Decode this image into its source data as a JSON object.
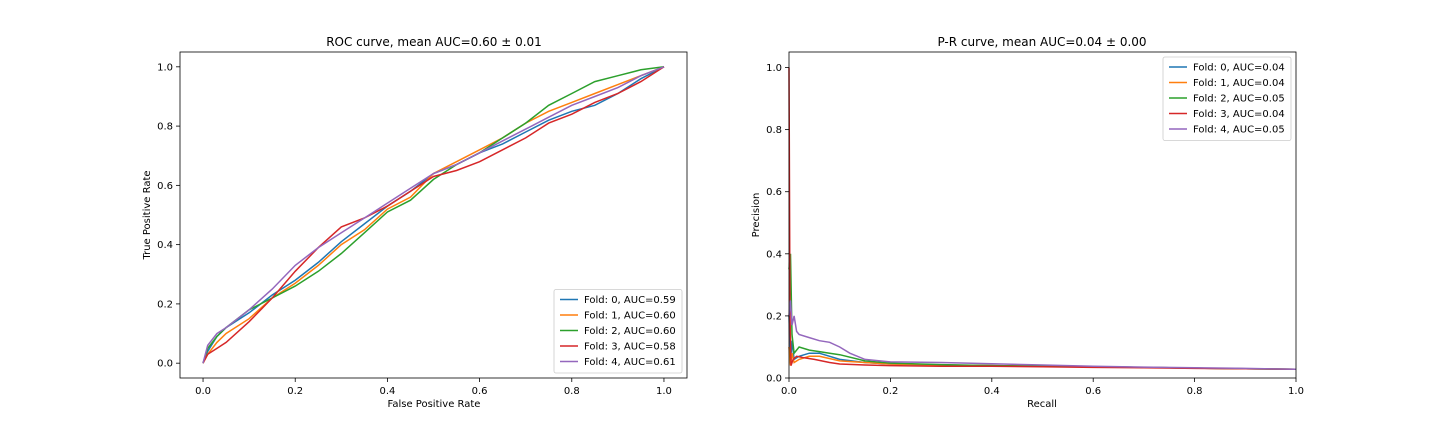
{
  "colors": {
    "fold0": "#1f77b4",
    "fold1": "#ff7f0e",
    "fold2": "#2ca02c",
    "fold3": "#d62728",
    "fold4": "#9467bd"
  },
  "chart_data": [
    {
      "type": "line",
      "title": "ROC curve, mean AUC=0.60 ± 0.01",
      "xlabel": "False Positive Rate",
      "ylabel": "True Positive Rate",
      "xlim": [
        -0.05,
        1.05
      ],
      "ylim": [
        -0.05,
        1.05
      ],
      "xticks": [
        "0.0",
        "0.2",
        "0.4",
        "0.6",
        "0.8",
        "1.0"
      ],
      "yticks": [
        "0.0",
        "0.2",
        "0.4",
        "0.6",
        "0.8",
        "1.0"
      ],
      "grid": false,
      "legend_position": "lower right",
      "series": [
        {
          "name": "Fold: 0, AUC=0.59",
          "color": "#1f77b4",
          "x": [
            0,
            0.01,
            0.03,
            0.05,
            0.1,
            0.15,
            0.2,
            0.25,
            0.3,
            0.35,
            0.4,
            0.45,
            0.5,
            0.55,
            0.6,
            0.65,
            0.7,
            0.75,
            0.8,
            0.85,
            0.9,
            0.95,
            1.0
          ],
          "y": [
            0,
            0.04,
            0.09,
            0.12,
            0.17,
            0.23,
            0.28,
            0.34,
            0.41,
            0.47,
            0.53,
            0.58,
            0.64,
            0.67,
            0.71,
            0.74,
            0.78,
            0.82,
            0.85,
            0.87,
            0.91,
            0.96,
            1.0
          ]
        },
        {
          "name": "Fold: 1, AUC=0.60",
          "color": "#ff7f0e",
          "x": [
            0,
            0.01,
            0.03,
            0.05,
            0.1,
            0.15,
            0.2,
            0.25,
            0.3,
            0.35,
            0.4,
            0.45,
            0.5,
            0.55,
            0.6,
            0.65,
            0.7,
            0.75,
            0.8,
            0.85,
            0.9,
            0.95,
            1.0
          ],
          "y": [
            0,
            0.03,
            0.07,
            0.1,
            0.15,
            0.22,
            0.27,
            0.33,
            0.4,
            0.45,
            0.52,
            0.56,
            0.64,
            0.68,
            0.72,
            0.76,
            0.81,
            0.85,
            0.88,
            0.91,
            0.94,
            0.97,
            1.0
          ]
        },
        {
          "name": "Fold: 2, AUC=0.60",
          "color": "#2ca02c",
          "x": [
            0,
            0.01,
            0.03,
            0.05,
            0.1,
            0.15,
            0.2,
            0.25,
            0.3,
            0.35,
            0.4,
            0.45,
            0.5,
            0.55,
            0.6,
            0.65,
            0.7,
            0.75,
            0.8,
            0.85,
            0.9,
            0.95,
            1.0
          ],
          "y": [
            0,
            0.05,
            0.09,
            0.12,
            0.18,
            0.22,
            0.26,
            0.31,
            0.37,
            0.44,
            0.51,
            0.55,
            0.62,
            0.67,
            0.71,
            0.76,
            0.81,
            0.87,
            0.91,
            0.95,
            0.97,
            0.99,
            1.0
          ]
        },
        {
          "name": "Fold: 3, AUC=0.58",
          "color": "#d62728",
          "x": [
            0,
            0.01,
            0.03,
            0.05,
            0.1,
            0.15,
            0.2,
            0.25,
            0.3,
            0.35,
            0.4,
            0.45,
            0.5,
            0.55,
            0.6,
            0.65,
            0.7,
            0.75,
            0.8,
            0.85,
            0.9,
            0.95,
            1.0
          ],
          "y": [
            0,
            0.03,
            0.05,
            0.07,
            0.14,
            0.22,
            0.31,
            0.39,
            0.46,
            0.49,
            0.53,
            0.58,
            0.63,
            0.65,
            0.68,
            0.72,
            0.76,
            0.81,
            0.84,
            0.88,
            0.91,
            0.95,
            1.0
          ]
        },
        {
          "name": "Fold: 4, AUC=0.61",
          "color": "#9467bd",
          "x": [
            0,
            0.01,
            0.03,
            0.05,
            0.1,
            0.15,
            0.2,
            0.25,
            0.3,
            0.35,
            0.4,
            0.45,
            0.5,
            0.55,
            0.6,
            0.65,
            0.7,
            0.75,
            0.8,
            0.85,
            0.9,
            0.95,
            1.0
          ],
          "y": [
            0,
            0.06,
            0.1,
            0.12,
            0.18,
            0.25,
            0.33,
            0.39,
            0.44,
            0.49,
            0.54,
            0.59,
            0.64,
            0.67,
            0.71,
            0.75,
            0.79,
            0.83,
            0.87,
            0.9,
            0.93,
            0.97,
            1.0
          ]
        }
      ]
    },
    {
      "type": "line",
      "title": "P-R curve, mean AUC=0.04 ± 0.00",
      "xlabel": "Recall",
      "ylabel": "Precision",
      "xlim": [
        0.0,
        1.0
      ],
      "ylim": [
        0.0,
        1.05
      ],
      "xticks": [
        "0.0",
        "0.2",
        "0.4",
        "0.6",
        "0.8",
        "1.0"
      ],
      "yticks": [
        "0.0",
        "0.2",
        "0.4",
        "0.6",
        "0.8",
        "1.0"
      ],
      "grid": false,
      "legend_position": "upper right",
      "series": [
        {
          "name": "Fold: 0, AUC=0.04",
          "color": "#1f77b4",
          "x": [
            0,
            0.003,
            0.006,
            0.01,
            0.02,
            0.04,
            0.06,
            0.1,
            0.15,
            0.2,
            0.3,
            0.4,
            0.5,
            0.6,
            0.7,
            0.8,
            0.9,
            1.0
          ],
          "y": [
            0.2,
            0.05,
            0.12,
            0.06,
            0.07,
            0.08,
            0.08,
            0.06,
            0.05,
            0.045,
            0.042,
            0.04,
            0.038,
            0.036,
            0.034,
            0.032,
            0.03,
            0.028
          ]
        },
        {
          "name": "Fold: 1, AUC=0.04",
          "color": "#ff7f0e",
          "x": [
            0,
            0.003,
            0.006,
            0.01,
            0.02,
            0.04,
            0.06,
            0.1,
            0.15,
            0.2,
            0.3,
            0.4,
            0.5,
            0.6,
            0.7,
            0.8,
            0.9,
            1.0
          ],
          "y": [
            0.1,
            0.04,
            0.08,
            0.05,
            0.06,
            0.07,
            0.07,
            0.055,
            0.05,
            0.045,
            0.042,
            0.04,
            0.038,
            0.036,
            0.034,
            0.032,
            0.03,
            0.028
          ]
        },
        {
          "name": "Fold: 2, AUC=0.05",
          "color": "#2ca02c",
          "x": [
            0,
            0.003,
            0.006,
            0.01,
            0.02,
            0.04,
            0.06,
            0.08,
            0.1,
            0.15,
            0.2,
            0.3,
            0.4,
            0.5,
            0.6,
            0.7,
            0.8,
            0.9,
            1.0
          ],
          "y": [
            0.35,
            0.4,
            0.14,
            0.08,
            0.1,
            0.09,
            0.085,
            0.08,
            0.075,
            0.055,
            0.048,
            0.043,
            0.04,
            0.038,
            0.036,
            0.034,
            0.032,
            0.03,
            0.028
          ]
        },
        {
          "name": "Fold: 3, AUC=0.04",
          "color": "#d62728",
          "x": [
            0,
            0.001,
            0.002,
            0.004,
            0.008,
            0.015,
            0.03,
            0.05,
            0.08,
            0.1,
            0.15,
            0.2,
            0.3,
            0.4,
            0.5,
            0.6,
            0.7,
            0.8,
            0.9,
            1.0
          ],
          "y": [
            1.0,
            0.6,
            0.2,
            0.04,
            0.06,
            0.07,
            0.065,
            0.06,
            0.05,
            0.045,
            0.042,
            0.04,
            0.038,
            0.038,
            0.036,
            0.034,
            0.033,
            0.031,
            0.03,
            0.028
          ]
        },
        {
          "name": "Fold: 4, AUC=0.05",
          "color": "#9467bd",
          "x": [
            0,
            0.003,
            0.006,
            0.01,
            0.015,
            0.02,
            0.04,
            0.06,
            0.08,
            0.1,
            0.12,
            0.15,
            0.2,
            0.3,
            0.4,
            0.5,
            0.6,
            0.7,
            0.8,
            0.9,
            1.0
          ],
          "y": [
            0.2,
            0.25,
            0.17,
            0.2,
            0.15,
            0.14,
            0.13,
            0.12,
            0.115,
            0.1,
            0.08,
            0.06,
            0.052,
            0.05,
            0.046,
            0.042,
            0.038,
            0.035,
            0.033,
            0.031,
            0.028
          ]
        }
      ]
    }
  ]
}
